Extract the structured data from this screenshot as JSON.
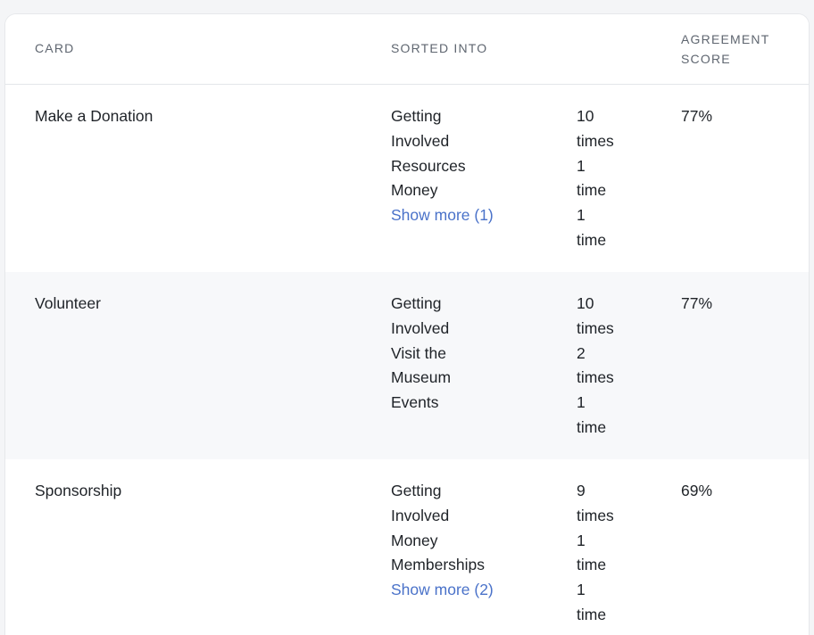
{
  "table": {
    "headers": {
      "card": "CARD",
      "sorted_into": "SORTED INTO",
      "agreement_line1": "AGREEMENT",
      "agreement_line2": "SCORE"
    },
    "rows": [
      {
        "card": "Make a Donation",
        "category_lines": [
          "Getting",
          "Involved",
          "Resources",
          "Money"
        ],
        "show_more": "Show more (1)",
        "count_lines": [
          "10",
          "times",
          "1",
          "time",
          "1",
          "time"
        ],
        "score": "77%"
      },
      {
        "card": "Volunteer",
        "category_lines": [
          "Getting",
          "Involved",
          "Visit the",
          "Museum",
          "Events"
        ],
        "show_more": "",
        "count_lines": [
          "10",
          "times",
          "2",
          "times",
          "1",
          "time"
        ],
        "score": "77%"
      },
      {
        "card": "Sponsorship",
        "category_lines": [
          "Getting",
          "Involved",
          "Money",
          "Memberships"
        ],
        "show_more": "Show more (2)",
        "count_lines": [
          "9",
          "times",
          "1",
          "time",
          "1",
          "time"
        ],
        "score": "69%"
      }
    ]
  },
  "colors": {
    "link": "#4a72c9",
    "row_alt_background": "#f7f8fa",
    "header_text": "#5f6670"
  }
}
